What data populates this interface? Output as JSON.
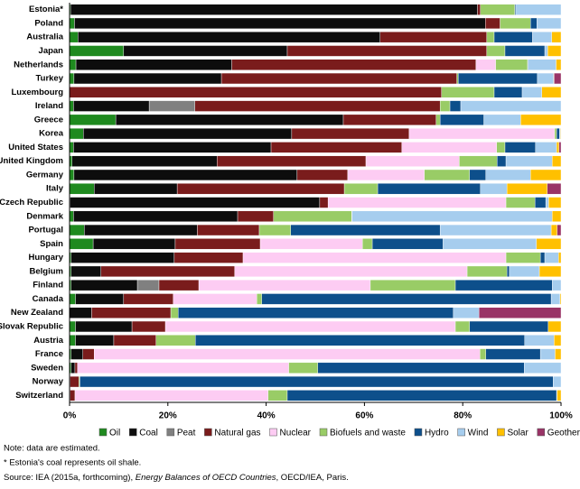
{
  "chart_data": {
    "type": "stacked-bar-horizontal",
    "categories": [
      "Estonia*",
      "Poland",
      "Australia",
      "Japan",
      "Netherlands",
      "Turkey",
      "Luxembourg",
      "Ireland",
      "Greece",
      "Korea",
      "United States",
      "United Kingdom",
      "Germany",
      "Italy",
      "Czech Republic",
      "Denmark",
      "Portugal",
      "Spain",
      "Hungary",
      "Belgium",
      "Finland",
      "Canada",
      "New Zealand",
      "Slovak Republic",
      "Austria",
      "France",
      "Sweden",
      "Norway",
      "Switzerland"
    ],
    "series": [
      {
        "name": "Oil",
        "color": "#1f8a1f",
        "values": [
          0.2,
          1,
          1.7,
          11,
          1.3,
          0.9,
          0,
          0.8,
          9.4,
          2.8,
          0.8,
          0.5,
          0.9,
          5,
          0.1,
          0.8,
          3,
          4.8,
          0.3,
          0.3,
          0.3,
          1.2,
          0,
          1.2,
          1.2,
          0.3,
          0.3,
          0,
          0.1
        ]
      },
      {
        "name": "Coal",
        "color": "#0d0d0d",
        "values": [
          82.8,
          83.6,
          61.5,
          33.3,
          31.7,
          30,
          0,
          15.4,
          46.3,
          42.4,
          40.2,
          29.5,
          45.4,
          16.9,
          50.8,
          33.4,
          23,
          16.7,
          21,
          6.1,
          13.5,
          9.8,
          4.5,
          11.5,
          7.8,
          2.4,
          0.8,
          0.1,
          0
        ]
      },
      {
        "name": "Peat",
        "color": "#808080",
        "values": [
          0,
          0,
          0,
          0,
          0,
          0,
          0,
          9.3,
          0,
          0,
          0,
          0,
          0,
          0,
          0,
          0,
          0,
          0,
          0,
          0,
          4.4,
          0,
          0,
          0,
          0,
          0,
          0,
          0,
          0
        ]
      },
      {
        "name": "Natural gas",
        "color": "#7a1c1c",
        "values": [
          0.6,
          3,
          21.7,
          40.6,
          49.7,
          47.9,
          75.7,
          49.9,
          18.9,
          23.9,
          26.6,
          30.3,
          10.3,
          34,
          1.7,
          7.3,
          12.6,
          17.3,
          14,
          27.2,
          8.1,
          10.1,
          16.1,
          6.8,
          8.6,
          2.3,
          0.5,
          1.8,
          1
        ]
      },
      {
        "name": "Nuclear",
        "color": "#fdccf3",
        "values": [
          0,
          0,
          0,
          0,
          4,
          0,
          0,
          0,
          0,
          29.6,
          19.3,
          19,
          15.6,
          0,
          36.2,
          0,
          0,
          20.8,
          53.5,
          47.3,
          34.9,
          17,
          0,
          59,
          0,
          78.5,
          43,
          0,
          39.3
        ]
      },
      {
        "name": "Biofuels and waste",
        "color": "#99cc66",
        "values": [
          7,
          6.2,
          1.5,
          3.7,
          6.5,
          0.3,
          10.7,
          2,
          0.8,
          0.4,
          1.7,
          7.7,
          9.2,
          6.8,
          5.9,
          15.9,
          6.4,
          2,
          7,
          8.1,
          17.3,
          1,
          1.5,
          2.9,
          8,
          1.2,
          5.9,
          0.2,
          3.9
        ]
      },
      {
        "name": "Hydro",
        "color": "#0d4f8b",
        "values": [
          0.2,
          1.3,
          7.8,
          8.1,
          0.1,
          16.1,
          5.7,
          2.2,
          8.9,
          0.6,
          6.2,
          1.8,
          3.3,
          20.9,
          2.2,
          0.1,
          30.4,
          14.4,
          0.9,
          0.5,
          19.7,
          58.9,
          56,
          16,
          67,
          11.1,
          42,
          96.3,
          54.8
        ]
      },
      {
        "name": "Wind",
        "color": "#a6cdee",
        "values": [
          9.2,
          4.9,
          3.9,
          0.6,
          5.7,
          3.3,
          4,
          20.4,
          7.5,
          0.2,
          4.3,
          9.4,
          9.1,
          5.4,
          0.6,
          40.7,
          22.6,
          19,
          2.8,
          6.1,
          1.8,
          1.8,
          5.2,
          0,
          6,
          3,
          7.5,
          1.6,
          0.1
        ]
      },
      {
        "name": "Solar",
        "color": "#ffc000",
        "values": [
          0,
          0,
          1.9,
          2.7,
          1,
          0.1,
          3.9,
          0,
          8.2,
          0.1,
          0.5,
          1.8,
          6.2,
          8.2,
          2.5,
          1.8,
          1.2,
          5,
          0.5,
          4.4,
          0,
          0.2,
          0,
          2.6,
          1.4,
          1.2,
          0,
          0,
          0.8
        ]
      },
      {
        "name": "Geothermal",
        "color": "#993366",
        "values": [
          0,
          0,
          0,
          0,
          0,
          1.4,
          0,
          0,
          0,
          0,
          0.4,
          0,
          0,
          2.8,
          0,
          0,
          0.8,
          0,
          0,
          0,
          0,
          0,
          16.7,
          0,
          0,
          0,
          0,
          0,
          0
        ]
      }
    ],
    "xlim": [
      0,
      100
    ],
    "xticks": [
      {
        "value": 0,
        "label": "0%"
      },
      {
        "value": 20,
        "label": "20%"
      },
      {
        "value": 40,
        "label": "40%"
      },
      {
        "value": 60,
        "label": "60%"
      },
      {
        "value": 80,
        "label": "80%"
      },
      {
        "value": 100,
        "label": "100%"
      }
    ],
    "notes": [
      "Note: data are estimated.",
      "* Estonia's coal represents oil shale."
    ],
    "source": {
      "prefix": "Source: IEA (2015a, forthcoming), ",
      "title": "Energy Balances of OECD Countries",
      "suffix": ", OECD/IEA, Paris."
    }
  }
}
